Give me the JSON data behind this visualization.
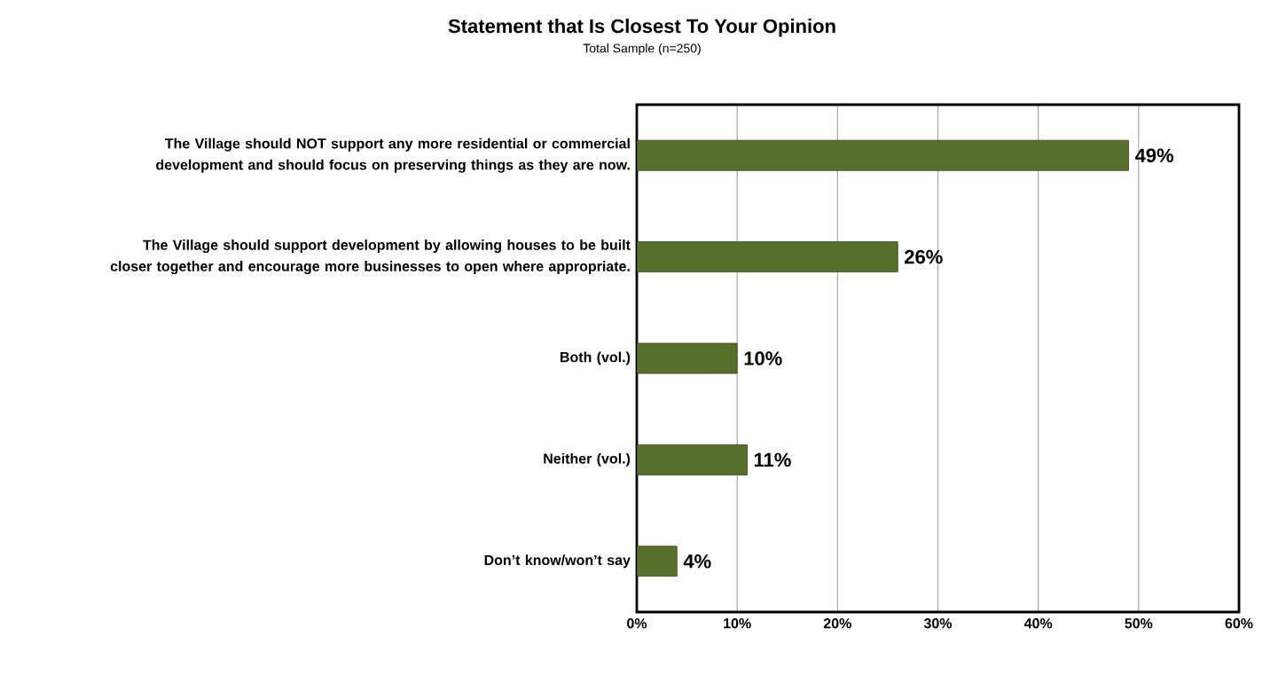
{
  "chart_data": {
    "type": "bar",
    "orientation": "horizontal",
    "title": "Statement that Is Closest To Your Opinion",
    "subtitle": "Total Sample (n=250)",
    "categories": [
      "The Village should NOT support any more residential or commercial development and should focus on preserving things as they are now.",
      "The Village should support development by allowing houses to be built closer together and encourage more businesses to open where appropriate.",
      "Both (vol.)",
      "Neither (vol.)",
      "Don’t know/won’t say"
    ],
    "values": [
      49,
      26,
      10,
      11,
      4
    ],
    "color": "#566f2a",
    "value_labels": [
      "49%",
      "26%",
      "10%",
      "11%",
      "4%"
    ],
    "xlim": [
      0,
      60
    ],
    "xticks": [
      {
        "value": 0,
        "label": "0%"
      },
      {
        "value": 10,
        "label": "10%"
      },
      {
        "value": 20,
        "label": "20%"
      },
      {
        "value": 30,
        "label": "30%"
      },
      {
        "value": 40,
        "label": "40%"
      },
      {
        "value": 50,
        "label": "50%"
      },
      {
        "value": 60,
        "label": "60%"
      }
    ],
    "grid": "x"
  }
}
